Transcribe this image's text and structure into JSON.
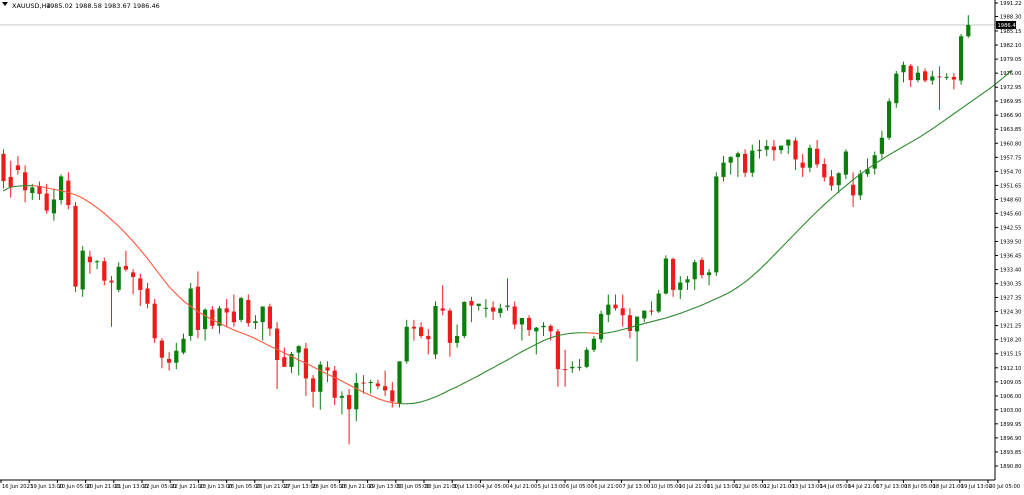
{
  "header": {
    "symbol": "XAUUSD,H4",
    "ohlc": "1985.02 1988.58 1983.67 1986.46"
  },
  "price_tag": "1986.46",
  "colors": {
    "bull": "#0a7d0a",
    "bear": "#ee1b1b",
    "ma_up": "#2e8b2e",
    "ma_down": "#ff5a3c",
    "axis": "#000000",
    "price_line": "#c0c0c0"
  },
  "y_axis": {
    "ticks": [
      "1991.22",
      "1988.30",
      "1985.15",
      "1982.10",
      "1979.05",
      "1976.00",
      "1972.95",
      "1969.95",
      "1966.90",
      "1963.85",
      "1960.80",
      "1957.75",
      "1954.70",
      "1951.65",
      "1948.60",
      "1945.60",
      "1942.55",
      "1939.50",
      "1936.45",
      "1933.40",
      "1930.35",
      "1927.35",
      "1924.30",
      "1921.25",
      "1918.20",
      "1915.15",
      "1912.10",
      "1909.05",
      "1906.00",
      "1903.00",
      "1899.95",
      "1896.90",
      "1893.85",
      "1890.80"
    ]
  },
  "x_axis": {
    "labels": [
      "16 Jun 2023",
      "19 Jun 13:00",
      "20 Jun 05:00",
      "20 Jun 21:00",
      "21 Jun 13:00",
      "22 Jun 05:00",
      "22 Jun 21:00",
      "23 Jun 13:00",
      "26 Jun 05:00",
      "26 Jun 21:00",
      "27 Jun 13:00",
      "28 Jun 05:00",
      "28 Jun 21:00",
      "29 Jun 13:00",
      "30 Jun 05:00",
      "30 Jun 21:00",
      "3 Jul 13:00",
      "4 Jul 05:00",
      "4 Jul 21:00",
      "5 Jul 13:00",
      "6 Jul 05:00",
      "6 Jul 21:00",
      "7 Jul 13:00",
      "10 Jul 05:00",
      "10 Jul 21:00",
      "11 Jul 13:00",
      "12 Jul 05:00",
      "12 Jul 21:00",
      "13 Jul 13:00",
      "14 Jul 05:00",
      "14 Jul 21:00",
      "17 Jul 13:00",
      "18 Jul 05:00",
      "18 Jul 21:00",
      "19 Jul 13:00",
      "20 Jul 05:00"
    ]
  },
  "chart_data": {
    "type": "candlestick",
    "ylim": [
      1890.8,
      1991.22
    ],
    "series": [
      {
        "values": [
          [
            1958.5,
            1959.5,
            1951.0,
            1952.6
          ],
          [
            1953.5,
            1957.0,
            1949.0,
            1951.3
          ],
          [
            1956.0,
            1958.0,
            1954.0,
            1955.0
          ],
          [
            1954.5,
            1956.0,
            1948.0,
            1950.6
          ],
          [
            1950.0,
            1952.0,
            1948.5,
            1951.2
          ],
          [
            1951.5,
            1952.5,
            1948.5,
            1949.8
          ],
          [
            1949.9,
            1952.0,
            1945.5,
            1946.2
          ],
          [
            1945.6,
            1951.0,
            1944.0,
            1948.6
          ],
          [
            1948.5,
            1954.0,
            1947.5,
            1953.6
          ],
          [
            1952.7,
            1954.5,
            1946.5,
            1947.4
          ],
          [
            1947.2,
            1948.0,
            1928.5,
            1929.7
          ],
          [
            1929.1,
            1938.5,
            1927.5,
            1937.5
          ],
          [
            1936.2,
            1937.5,
            1932.5,
            1935.0
          ],
          [
            1935.0,
            1935.5,
            1933.5,
            1935.2
          ],
          [
            1935.2,
            1936.0,
            1930.0,
            1931.0
          ],
          [
            1931.0,
            1932.0,
            1921.0,
            1930.6
          ],
          [
            1929.0,
            1935.0,
            1928.5,
            1934.0
          ],
          [
            1934.2,
            1937.5,
            1933.0,
            1933.4
          ],
          [
            1932.8,
            1933.5,
            1928.0,
            1931.8
          ],
          [
            1931.5,
            1932.5,
            1925.5,
            1929.0
          ],
          [
            1929.3,
            1930.5,
            1925.0,
            1926.0
          ],
          [
            1926.0,
            1927.0,
            1917.5,
            1918.5
          ],
          [
            1918.0,
            1918.5,
            1912.0,
            1914.3
          ],
          [
            1914.0,
            1915.5,
            1911.5,
            1913.2
          ],
          [
            1913.2,
            1917.5,
            1911.8,
            1915.8
          ],
          [
            1915.4,
            1919.5,
            1915.0,
            1918.4
          ],
          [
            1919.0,
            1930.5,
            1918.0,
            1929.3
          ],
          [
            1929.7,
            1933.0,
            1918.5,
            1920.3
          ],
          [
            1920.5,
            1925.0,
            1918.0,
            1924.7
          ],
          [
            1924.7,
            1925.5,
            1920.5,
            1921.2
          ],
          [
            1921.2,
            1925.5,
            1919.5,
            1925.0
          ],
          [
            1925.0,
            1927.0,
            1921.0,
            1924.1
          ],
          [
            1924.3,
            1928.0,
            1921.0,
            1922.0
          ],
          [
            1922.5,
            1927.5,
            1922.0,
            1927.2
          ],
          [
            1926.8,
            1928.0,
            1921.0,
            1921.8
          ],
          [
            1921.8,
            1923.5,
            1920.5,
            1922.2
          ],
          [
            1922.0,
            1923.5,
            1918.0,
            1925.4
          ],
          [
            1925.4,
            1926.0,
            1919.0,
            1920.6
          ],
          [
            1920.6,
            1922.0,
            1907.5,
            1913.8
          ],
          [
            1914.4,
            1916.5,
            1912.5,
            1912.3
          ],
          [
            1912.3,
            1915.5,
            1911.0,
            1915.1
          ],
          [
            1915.4,
            1917.0,
            1910.5,
            1916.8
          ],
          [
            1916.3,
            1917.5,
            1906.0,
            1909.8
          ],
          [
            1909.8,
            1910.5,
            1903.5,
            1906.9
          ],
          [
            1906.9,
            1913.5,
            1903.0,
            1912.8
          ],
          [
            1912.2,
            1913.5,
            1909.0,
            1911.5
          ],
          [
            1911.5,
            1912.5,
            1904.0,
            1905.6
          ],
          [
            1905.6,
            1907.0,
            1902.0,
            1906.0
          ],
          [
            1906.2,
            1907.5,
            1895.5,
            1903.1
          ],
          [
            1903.1,
            1911.0,
            1900.5,
            1908.8
          ],
          [
            1908.9,
            1910.5,
            1906.5,
            1908.8
          ],
          [
            1908.8,
            1909.5,
            1906.5,
            1909.0
          ],
          [
            1908.7,
            1909.5,
            1907.5,
            1908.1
          ],
          [
            1908.1,
            1911.5,
            1906.0,
            1907.2
          ],
          [
            1907.2,
            1909.0,
            1903.5,
            1904.8
          ],
          [
            1904.4,
            1913.5,
            1903.5,
            1913.5
          ],
          [
            1913.5,
            1922.5,
            1913.0,
            1921.0
          ],
          [
            1921.0,
            1922.5,
            1918.0,
            1920.6
          ],
          [
            1920.9,
            1922.0,
            1918.5,
            1919.0
          ],
          [
            1919.0,
            1920.5,
            1915.0,
            1918.3
          ],
          [
            1915.0,
            1926.5,
            1914.0,
            1925.5
          ],
          [
            1925.0,
            1930.0,
            1923.5,
            1924.5
          ],
          [
            1924.5,
            1925.0,
            1914.5,
            1917.5
          ],
          [
            1917.5,
            1921.5,
            1916.5,
            1919.0
          ],
          [
            1919.0,
            1926.5,
            1918.5,
            1926.4
          ],
          [
            1926.6,
            1927.5,
            1922.0,
            1925.6
          ],
          [
            1925.5,
            1926.0,
            1924.5,
            1926.0
          ],
          [
            1925.0,
            1927.0,
            1923.0,
            1925.1
          ],
          [
            1925.2,
            1926.5,
            1922.5,
            1924.3
          ],
          [
            1924.0,
            1926.0,
            1923.0,
            1925.0
          ],
          [
            1925.3,
            1931.5,
            1924.5,
            1925.6
          ],
          [
            1925.4,
            1926.5,
            1920.5,
            1921.5
          ],
          [
            1921.5,
            1922.0,
            1918.0,
            1922.9
          ],
          [
            1922.9,
            1923.5,
            1919.0,
            1920.3
          ],
          [
            1920.0,
            1921.0,
            1915.0,
            1920.8
          ],
          [
            1920.9,
            1922.0,
            1919.0,
            1921.2
          ],
          [
            1921.2,
            1921.5,
            1918.0,
            1920.0
          ],
          [
            1920.0,
            1920.5,
            1908.0,
            1911.8
          ],
          [
            1911.8,
            1916.0,
            1908.0,
            1911.6
          ],
          [
            1912.0,
            1913.5,
            1911.0,
            1912.3
          ],
          [
            1912.3,
            1914.0,
            1911.5,
            1912.3
          ],
          [
            1912.3,
            1916.5,
            1912.0,
            1916.0
          ],
          [
            1916.0,
            1919.0,
            1915.5,
            1918.4
          ],
          [
            1918.3,
            1924.5,
            1917.5,
            1923.8
          ],
          [
            1923.6,
            1928.0,
            1922.0,
            1925.8
          ],
          [
            1925.8,
            1928.0,
            1924.5,
            1925.0
          ],
          [
            1925.0,
            1928.0,
            1921.0,
            1923.5
          ],
          [
            1923.5,
            1925.0,
            1918.5,
            1920.1
          ],
          [
            1920.0,
            1923.0,
            1913.5,
            1923.2
          ],
          [
            1922.8,
            1924.5,
            1922.0,
            1924.5
          ],
          [
            1924.5,
            1926.5,
            1923.5,
            1924.3
          ],
          [
            1924.3,
            1929.0,
            1924.0,
            1928.2
          ],
          [
            1928.2,
            1936.5,
            1928.0,
            1935.8
          ],
          [
            1935.7,
            1936.0,
            1927.5,
            1929.0
          ],
          [
            1929.0,
            1932.0,
            1927.0,
            1930.6
          ],
          [
            1930.6,
            1932.0,
            1929.0,
            1931.3
          ],
          [
            1931.3,
            1935.5,
            1929.0,
            1935.0
          ],
          [
            1935.5,
            1936.0,
            1931.5,
            1932.2
          ],
          [
            1932.2,
            1933.5,
            1930.0,
            1932.8
          ],
          [
            1932.8,
            1954.5,
            1932.0,
            1953.6
          ],
          [
            1953.5,
            1958.0,
            1952.5,
            1956.6
          ],
          [
            1956.6,
            1958.0,
            1954.0,
            1957.8
          ],
          [
            1957.8,
            1959.0,
            1953.5,
            1958.6
          ],
          [
            1958.5,
            1959.5,
            1953.5,
            1954.4
          ],
          [
            1954.4,
            1960.5,
            1953.5,
            1959.2
          ],
          [
            1959.1,
            1961.5,
            1957.5,
            1959.4
          ],
          [
            1959.4,
            1961.5,
            1958.0,
            1960.2
          ],
          [
            1960.1,
            1961.5,
            1957.0,
            1959.3
          ],
          [
            1959.3,
            1960.0,
            1958.5,
            1960.3
          ],
          [
            1960.3,
            1961.0,
            1958.5,
            1961.6
          ],
          [
            1961.4,
            1962.0,
            1955.0,
            1957.3
          ],
          [
            1956.6,
            1958.5,
            1953.5,
            1955.5
          ],
          [
            1955.5,
            1960.5,
            1954.5,
            1959.8
          ],
          [
            1959.6,
            1961.5,
            1955.5,
            1956.2
          ],
          [
            1956.3,
            1957.5,
            1952.5,
            1953.4
          ],
          [
            1953.6,
            1955.0,
            1950.5,
            1951.6
          ],
          [
            1951.7,
            1954.5,
            1950.0,
            1954.3
          ],
          [
            1954.0,
            1959.5,
            1953.0,
            1959.0
          ],
          [
            1951.8,
            1954.5,
            1947.0,
            1949.5
          ],
          [
            1949.5,
            1955.0,
            1948.5,
            1954.2
          ],
          [
            1954.1,
            1957.5,
            1953.5,
            1955.2
          ],
          [
            1955.3,
            1959.0,
            1954.0,
            1958.2
          ],
          [
            1958.5,
            1963.5,
            1957.5,
            1962.0
          ],
          [
            1962.0,
            1970.5,
            1961.5,
            1969.9
          ],
          [
            1969.5,
            1976.5,
            1968.5,
            1975.9
          ],
          [
            1976.2,
            1978.5,
            1974.0,
            1977.8
          ],
          [
            1977.6,
            1978.0,
            1973.0,
            1974.5
          ],
          [
            1974.5,
            1977.5,
            1974.0,
            1976.1
          ],
          [
            1976.4,
            1977.0,
            1974.0,
            1974.4
          ],
          [
            1974.4,
            1976.5,
            1973.5,
            1975.3
          ],
          [
            1975.3,
            1977.5,
            1968.0,
            1975.2
          ],
          [
            1975.2,
            1976.0,
            1974.5,
            1975.2
          ],
          [
            1975.2,
            1976.0,
            1972.5,
            1974.6
          ],
          [
            1974.4,
            1984.5,
            1973.5,
            1984.0
          ],
          [
            1984.0,
            1988.58,
            1983.67,
            1986.46
          ]
        ]
      }
    ],
    "indicator": {
      "name": "",
      "values": [
        1950.5,
        1951.3,
        1951.5,
        1951.6,
        1951.6,
        1951.5,
        1951.1,
        1950.8,
        1950.5,
        1950.1,
        1949.6,
        1948.9,
        1947.9,
        1946.8,
        1945.6,
        1944.2,
        1942.8,
        1941.2,
        1939.5,
        1937.7,
        1935.8,
        1933.7,
        1931.7,
        1929.7,
        1928.1,
        1926.6,
        1925.4,
        1924.3,
        1923.4,
        1922.5,
        1921.8,
        1921.0,
        1920.3,
        1919.7,
        1919.1,
        1918.4,
        1917.6,
        1916.8,
        1916.1,
        1915.3,
        1914.6,
        1913.8,
        1913.1,
        1912.3,
        1911.5,
        1910.7,
        1910.0,
        1909.2,
        1908.4,
        1907.6,
        1906.8,
        1906.1,
        1905.4,
        1904.9,
        1904.5,
        1904.3,
        1904.3,
        1904.4,
        1904.7,
        1905.2,
        1905.8,
        1906.5,
        1907.3,
        1908.0,
        1908.8,
        1909.6,
        1910.4,
        1911.3,
        1912.1,
        1913.0,
        1913.8,
        1914.7,
        1915.6,
        1916.4,
        1917.2,
        1918.0,
        1918.6,
        1919.1,
        1919.4,
        1919.6,
        1919.7,
        1919.7,
        1919.6,
        1919.5,
        1919.7,
        1920.0,
        1920.4,
        1920.8,
        1921.3,
        1921.7,
        1922.1,
        1922.5,
        1922.9,
        1923.4,
        1923.9,
        1924.5,
        1925.1,
        1925.7,
        1926.4,
        1927.1,
        1927.8,
        1928.6,
        1929.6,
        1930.7,
        1932.0,
        1933.4,
        1934.9,
        1936.5,
        1938.1,
        1939.7,
        1941.3,
        1942.9,
        1944.5,
        1946.0,
        1947.5,
        1948.9,
        1950.3,
        1951.6,
        1952.9,
        1954.1,
        1955.2,
        1956.3,
        1957.3,
        1958.3,
        1959.2,
        1960.1,
        1961.0,
        1961.9,
        1962.9,
        1963.9,
        1965.0,
        1966.1,
        1967.2,
        1968.3,
        1969.4,
        1970.5,
        1971.6,
        1972.7,
        1973.9,
        1975.2,
        1976.6
      ]
    }
  }
}
